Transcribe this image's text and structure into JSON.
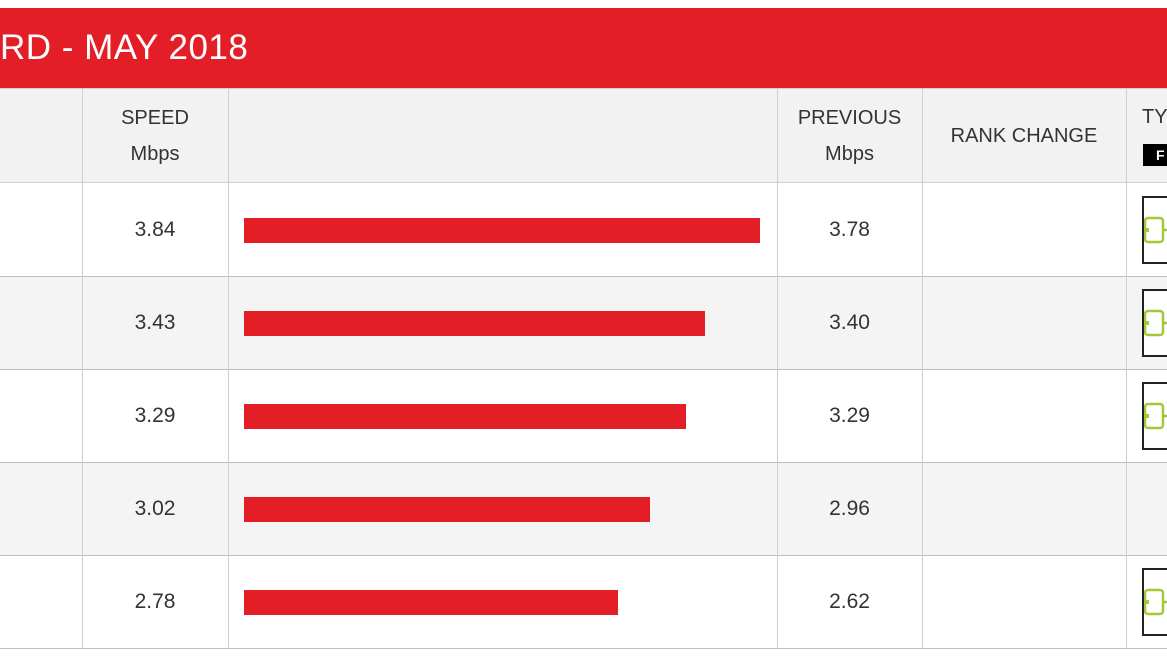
{
  "banner": {
    "title": "RD - MAY 2018"
  },
  "header": {
    "speed": {
      "line1": "SPEED",
      "line2": "Mbps"
    },
    "previous": {
      "line1": "PREVIOUS",
      "line2": "Mbps"
    },
    "rank_change": "RANK CHANGE",
    "type": {
      "line1": "TY",
      "badge": "F"
    }
  },
  "chart_data": {
    "type": "bar",
    "orientation": "horizontal",
    "title": "RD - MAY 2018",
    "xlim": [
      0,
      3.84
    ],
    "columns": [
      "SPEED Mbps",
      "PREVIOUS Mbps",
      "RANK CHANGE",
      "TY"
    ],
    "rows": [
      {
        "speed": "3.84",
        "previous": "3.78",
        "rank_change": "",
        "type_icon": "plug-icon",
        "value": 3.84
      },
      {
        "speed": "3.43",
        "previous": "3.40",
        "rank_change": "",
        "type_icon": "plug-icon",
        "value": 3.43
      },
      {
        "speed": "3.29",
        "previous": "3.29",
        "rank_change": "",
        "type_icon": "plug-icon",
        "value": 3.29
      },
      {
        "speed": "3.02",
        "previous": "2.96",
        "rank_change": "",
        "type_icon": "",
        "value": 3.02
      },
      {
        "speed": "2.78",
        "previous": "2.62",
        "rank_change": "",
        "type_icon": "plug-icon",
        "value": 2.78
      }
    ]
  },
  "colors": {
    "accent": "#e41e26",
    "header_bg": "#f2f2f2",
    "row_alt_bg": "#f4f4f4",
    "icon_green": "#a3c83a"
  }
}
